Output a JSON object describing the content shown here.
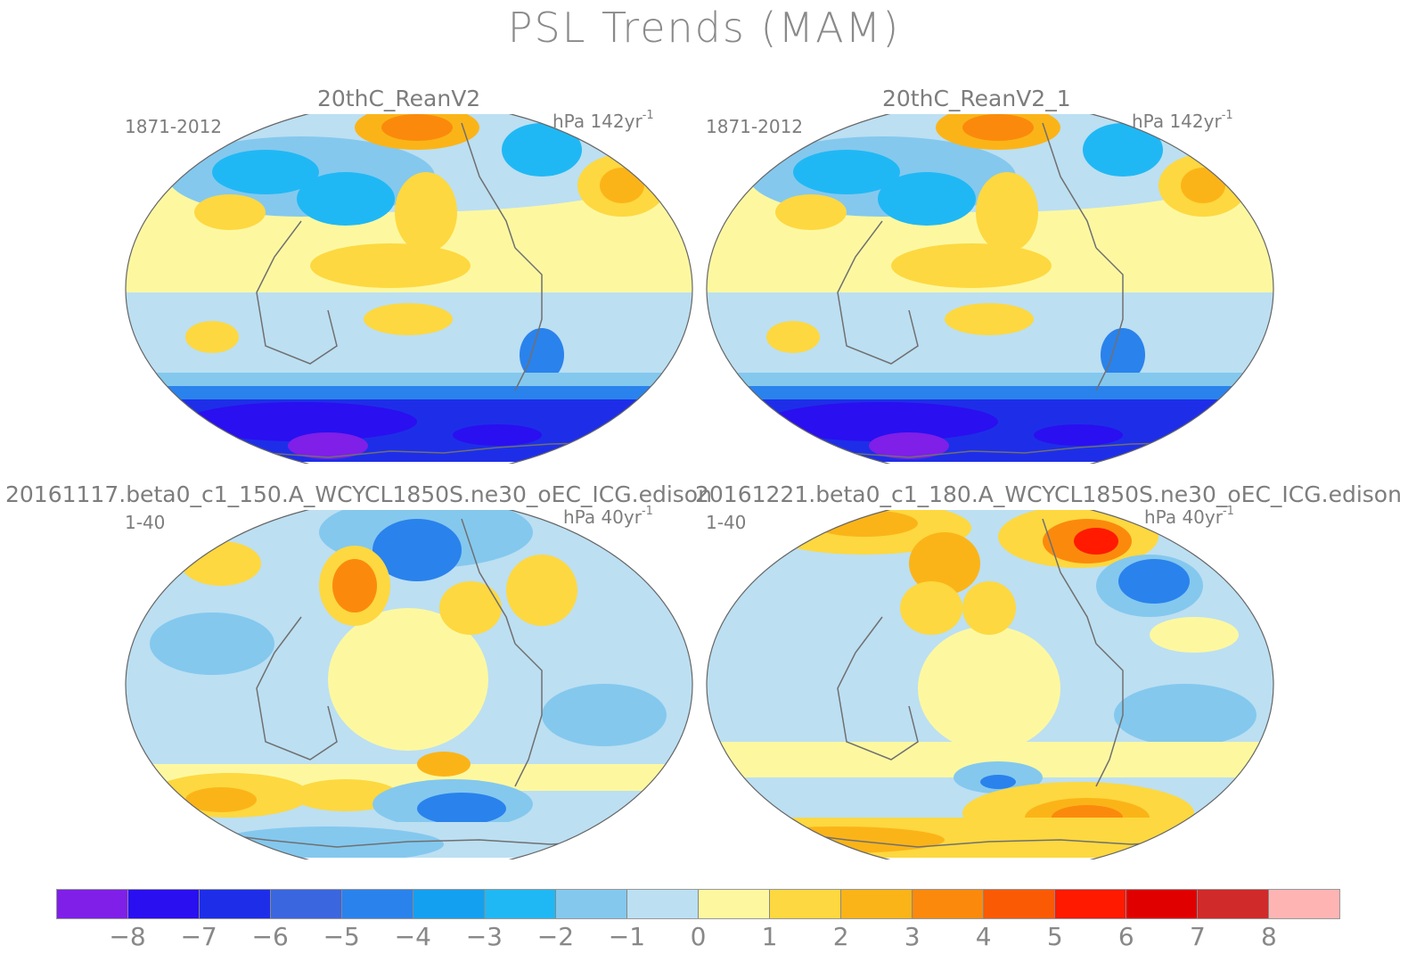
{
  "title": "PSL Trends (MAM)",
  "panels": [
    {
      "id": "p1",
      "title": "20thC_ReanV2",
      "period": "1871-2012",
      "units": "hPa 142yr",
      "units_exp": "-1"
    },
    {
      "id": "p2",
      "title": "20thC_ReanV2_1",
      "period": "1871-2012",
      "units": "hPa 142yr",
      "units_exp": "-1"
    },
    {
      "id": "p3",
      "title": "20161117.beta0_c1_150.A_WCYCL1850S.ne30_oEC_ICG.edison",
      "period": "1-40",
      "units": "hPa 40yr",
      "units_exp": "-1"
    },
    {
      "id": "p4",
      "title": "20161221.beta0_c1_180.A_WCYCL1850S.ne30_oEC_ICG.edison",
      "period": "1-40",
      "units": "hPa 40yr",
      "units_exp": "-1"
    }
  ],
  "colorbar": {
    "colors": [
      "#7f1fe8",
      "#2a0ff0",
      "#1e2ee8",
      "#3a66e0",
      "#2a82ec",
      "#14a0f0",
      "#20b8f4",
      "#84c8ee",
      "#bcdff2",
      "#fdf8a0",
      "#fdd840",
      "#fbb418",
      "#fb8a0c",
      "#fb5a04",
      "#ff1a00",
      "#e00000",
      "#d02a2a",
      "#ffb4b4"
    ],
    "labels": [
      "−8",
      "−7",
      "−6",
      "−5",
      "−4",
      "−3",
      "−2",
      "−1",
      "0",
      "1",
      "2",
      "3",
      "4",
      "5",
      "6",
      "7",
      "8"
    ]
  }
}
